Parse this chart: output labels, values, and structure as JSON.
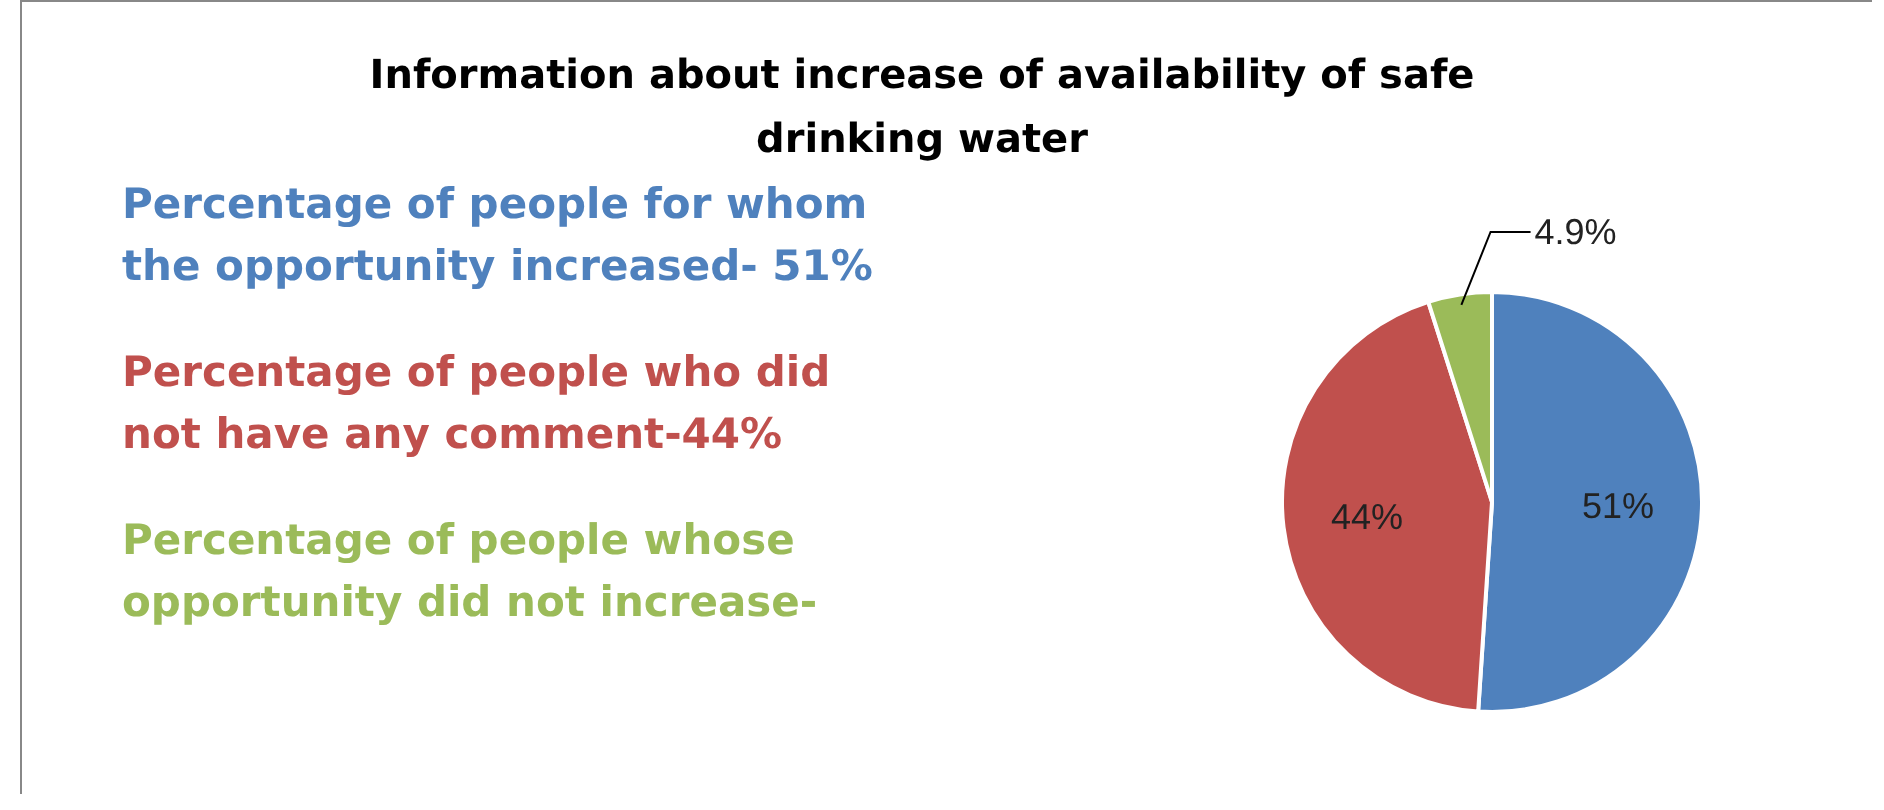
{
  "chart_data": {
    "type": "pie",
    "title": "Information about increase of availability of safe drinking water",
    "categories": [
      null,
      null,
      null
    ],
    "values": [
      51,
      44,
      4.9
    ],
    "colors": [
      "#4f81bd",
      "#c0504d",
      "#9bbb59"
    ],
    "value_labels": [
      "51%",
      "44%",
      "4.9%"
    ],
    "annotations": [
      "Percentage of people for whom the opportunity increased- 51%",
      "Percentage of people who did not have any comment-44%",
      "Percentage of people whose opportunity did not increase-"
    ]
  }
}
